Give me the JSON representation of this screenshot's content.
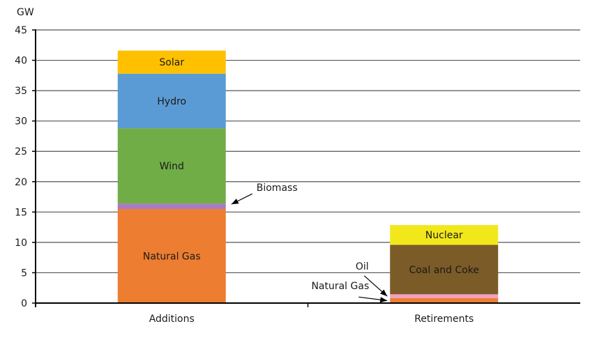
{
  "chart_data": {
    "type": "bar",
    "stacked": true,
    "ylabel": "GW",
    "ylim": [
      0,
      45
    ],
    "yticks": [
      0,
      5,
      10,
      15,
      20,
      25,
      30,
      35,
      40,
      45
    ],
    "grid": true,
    "categories": [
      "Additions",
      "Retirements"
    ],
    "series": [
      {
        "category": "Additions",
        "name": "Natural Gas",
        "value": 15.5,
        "color": "#ED7D31",
        "label": "inside"
      },
      {
        "category": "Additions",
        "name": "Biomass",
        "value": 0.9,
        "color": "#A97CC0",
        "label": "callout"
      },
      {
        "category": "Additions",
        "name": "Wind",
        "value": 12.4,
        "color": "#70AD47",
        "label": "inside"
      },
      {
        "category": "Additions",
        "name": "Hydro",
        "value": 9.0,
        "color": "#5B9BD5",
        "label": "inside"
      },
      {
        "category": "Additions",
        "name": "Solar",
        "value": 3.8,
        "color": "#FFC000",
        "label": "inside"
      },
      {
        "category": "Retirements",
        "name": "Natural Gas",
        "value": 0.8,
        "color": "#ED7D31",
        "label": "callout"
      },
      {
        "category": "Retirements",
        "name": "Oil",
        "value": 0.65,
        "color": "#F4A0C0",
        "label": "callout"
      },
      {
        "category": "Retirements",
        "name": "Coal and Coke",
        "value": 8.15,
        "color": "#7B5B27",
        "label": "inside"
      },
      {
        "category": "Retirements",
        "name": "Nuclear",
        "value": 3.25,
        "color": "#F2E71A",
        "label": "inside"
      }
    ]
  }
}
